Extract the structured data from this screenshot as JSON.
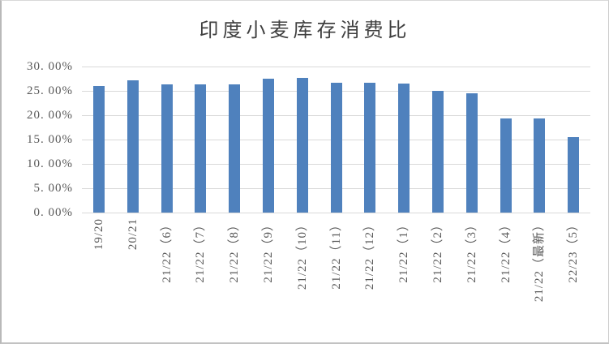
{
  "chart_data": {
    "type": "bar",
    "title": "印度小麦库存消费比",
    "categories": [
      "19/20",
      "20/21",
      "21/22（6）",
      "21/22（7）",
      "21/22（8）",
      "21/22（9）",
      "21/22（10）",
      "21/22（11）",
      "21/22（12）",
      "21/22（1）",
      "21/22（2）",
      "21/22（3）",
      "21/22（4）",
      "21/22（最新）",
      "22/23（5）"
    ],
    "values": [
      26.0,
      27.2,
      26.3,
      26.4,
      26.3,
      27.5,
      27.7,
      26.6,
      26.6,
      26.5,
      25.0,
      24.5,
      19.3,
      19.4,
      15.5
    ],
    "unit": "%",
    "y_tick_labels": [
      "30. 00%",
      "25. 00%",
      "20. 00%",
      "15. 00%",
      "10. 00%",
      "5. 00%",
      "0. 00%"
    ],
    "ylim": [
      0,
      30
    ],
    "y_step": 5,
    "grid": true,
    "legend": "none",
    "xlabel": "",
    "ylabel": "",
    "colors": {
      "bar": "#4F81BD",
      "gridline": "#D9D9D9",
      "axis_text": "#595959",
      "title_text": "#3F3F3F",
      "background": "#FFFFFF",
      "frame_border": "#C2C2C2"
    }
  }
}
